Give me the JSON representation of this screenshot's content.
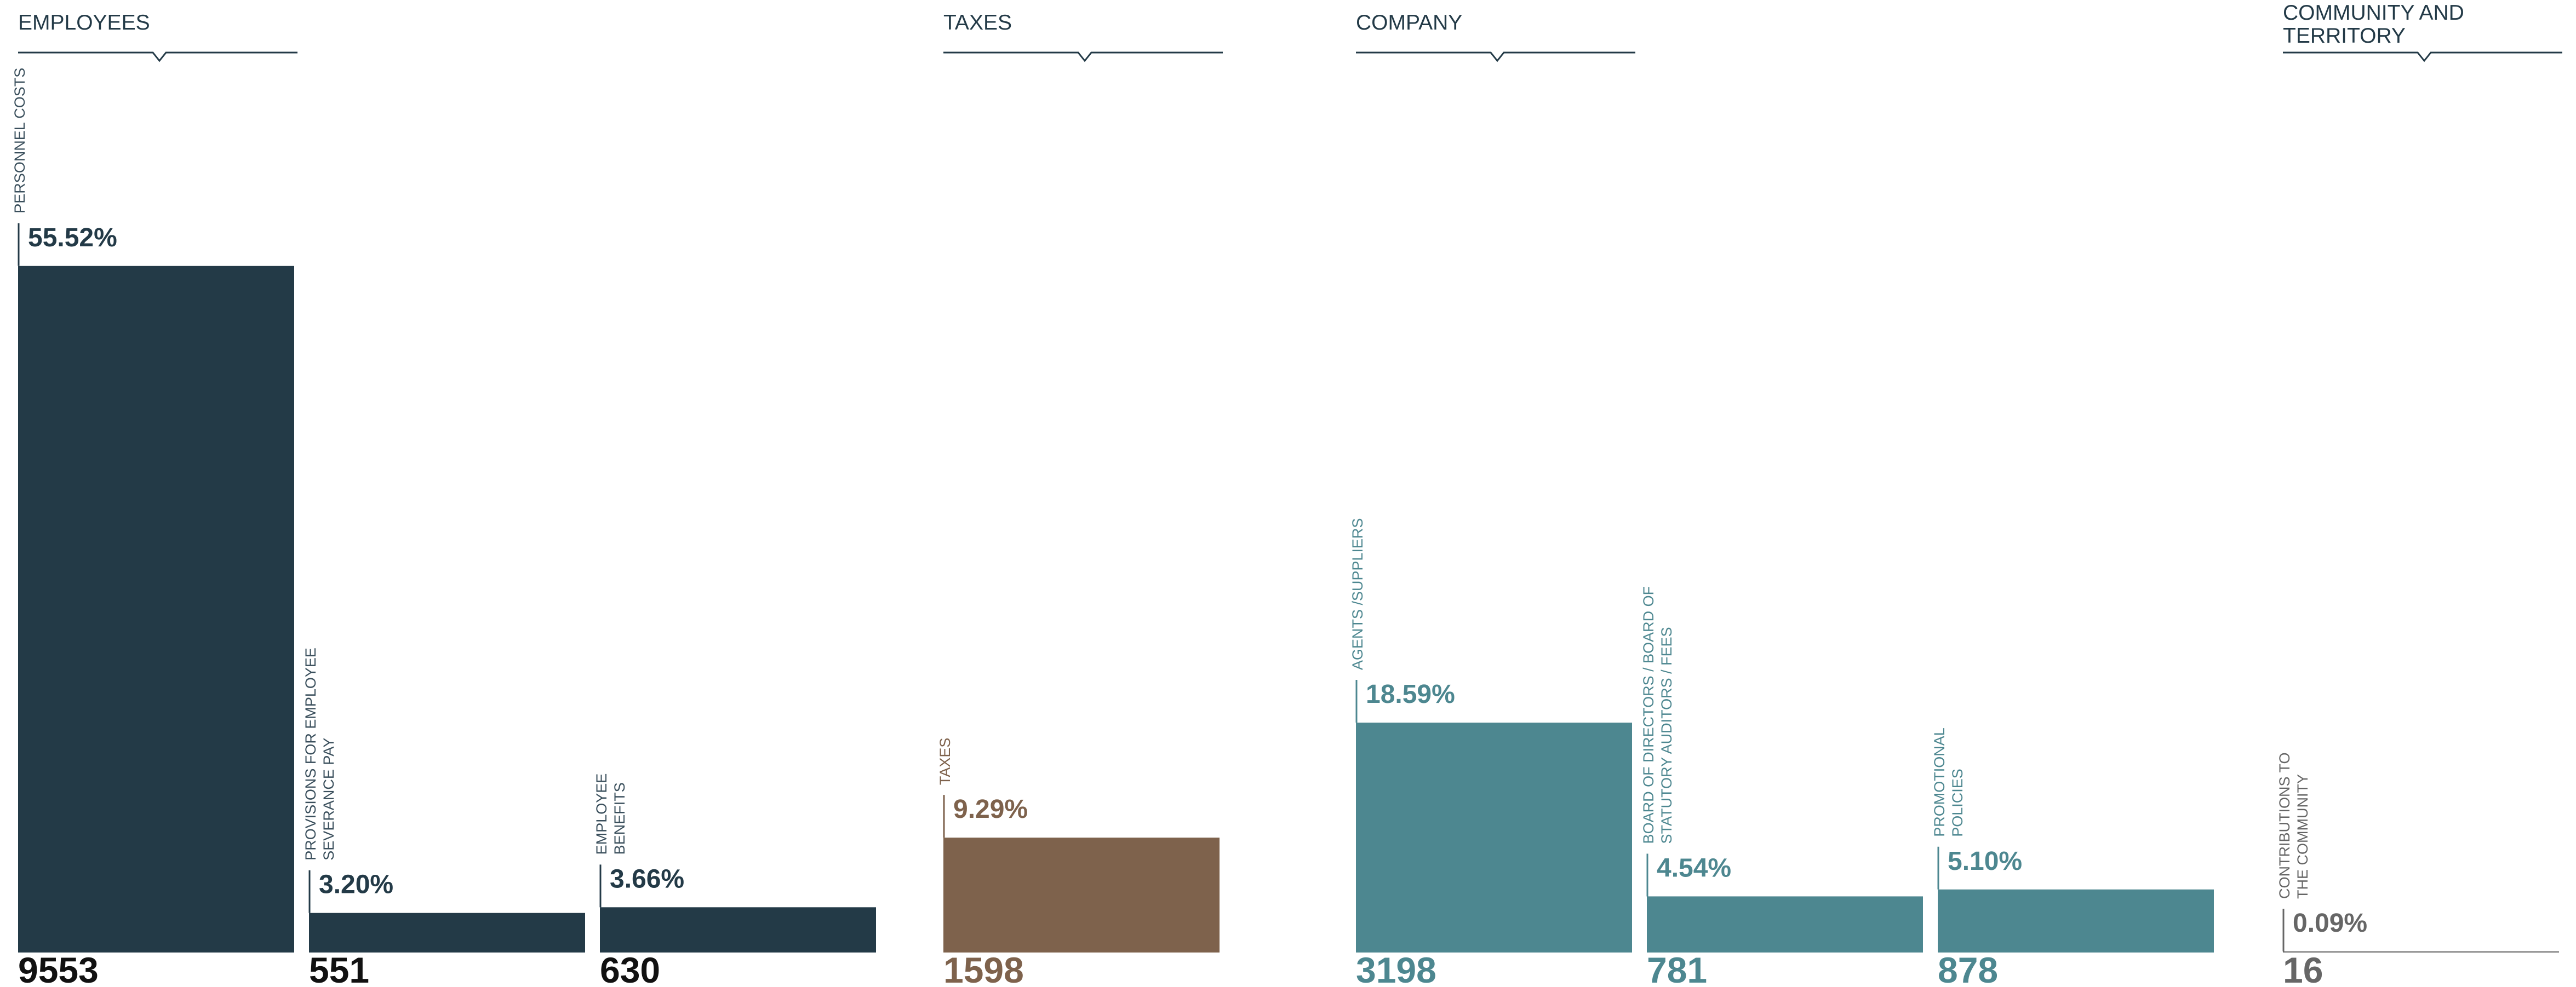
{
  "chart_data": {
    "type": "bar",
    "groups": [
      {
        "name": [
          "EMPLOYEES"
        ],
        "color": "#233a47",
        "label_color": "#3a4f5c",
        "amount_color": "#111111",
        "categories": [
          [
            "PERSONNEL COSTS"
          ],
          [
            "PROVISIONS FOR EMPLOYEE",
            "SEVERANCE PAY"
          ],
          [
            "EMPLOYEE",
            "BENEFITS"
          ]
        ],
        "values": [
          55.52,
          3.2,
          3.66
        ],
        "value_labels": [
          "55.52%",
          "3.20%",
          "3.66%"
        ],
        "amounts": [
          9553,
          551,
          630
        ]
      },
      {
        "name": [
          "TAXES"
        ],
        "color": "#7e624c",
        "label_color": "#7e624c",
        "amount_color": "#7e624c",
        "categories": [
          [
            "TAXES"
          ]
        ],
        "values": [
          9.29
        ],
        "value_labels": [
          "9.29%"
        ],
        "amounts": [
          1598
        ]
      },
      {
        "name": [
          "COMPANY"
        ],
        "color": "#4d8790",
        "label_color": "#4d8790",
        "amount_color": "#4d8790",
        "categories": [
          [
            "AGENTS /SUPPLIERS"
          ],
          [
            "BOARD OF DIRECTORS / BOARD OF",
            "STATUTORY AUDITORS / FEES"
          ],
          [
            "PROMOTIONAL",
            "POLICIES"
          ]
        ],
        "values": [
          18.59,
          4.54,
          5.1
        ],
        "value_labels": [
          "18.59%",
          "4.54%",
          "5.10%"
        ],
        "amounts": [
          3198,
          781,
          878
        ]
      },
      {
        "name": [
          "COMMUNITY AND",
          "TERRITORY"
        ],
        "color": "#666666",
        "label_color": "#666666",
        "amount_color": "#666666",
        "categories": [
          [
            "CONTRIBUTIONS TO",
            "THE COMMUNITY"
          ]
        ],
        "values": [
          0.09
        ],
        "value_labels": [
          "0.09%"
        ],
        "amounts": [
          16
        ]
      }
    ]
  }
}
